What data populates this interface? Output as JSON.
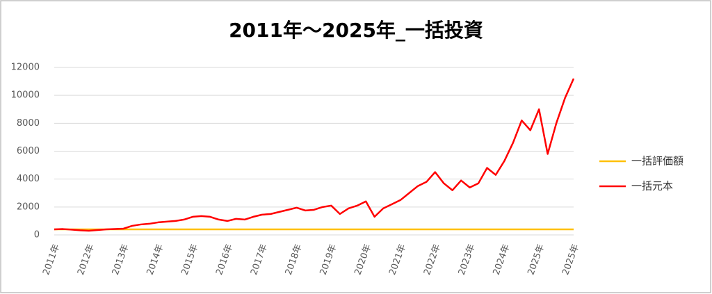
{
  "chart_data": {
    "type": "line",
    "title": "2011年～2025年_一括投資",
    "categories": [
      "2011年",
      null,
      null,
      null,
      "2012年",
      null,
      null,
      null,
      "2013年",
      null,
      null,
      null,
      "2014年",
      null,
      null,
      null,
      "2015年",
      null,
      null,
      null,
      "2016年",
      null,
      null,
      null,
      "2017年",
      null,
      null,
      null,
      "2018年",
      null,
      null,
      null,
      "2019年",
      null,
      null,
      null,
      "2020年",
      null,
      null,
      null,
      "2021年",
      null,
      null,
      null,
      "2022年",
      null,
      null,
      null,
      "2023年",
      null,
      null,
      null,
      "2024年",
      null,
      null,
      null,
      "2025年",
      null,
      null,
      null,
      "2025年"
    ],
    "series": [
      {
        "name": "一括評価額",
        "color": "#ffc000",
        "values": [
          400,
          400,
          400,
          400,
          400,
          400,
          400,
          400,
          400,
          400,
          400,
          400,
          400,
          400,
          400,
          400,
          400,
          400,
          400,
          400,
          400,
          400,
          400,
          400,
          400,
          400,
          400,
          400,
          400,
          400,
          400,
          400,
          400,
          400,
          400,
          400,
          400,
          400,
          400,
          400,
          400,
          400,
          400,
          400,
          400,
          400,
          400,
          400,
          400,
          400,
          400,
          400,
          400,
          400,
          400,
          400,
          400,
          400,
          400,
          400,
          400
        ]
      },
      {
        "name": "一括元本",
        "color": "#ff0000",
        "values": [
          400,
          420,
          380,
          330,
          300,
          350,
          400,
          420,
          450,
          650,
          750,
          800,
          900,
          950,
          1000,
          1100,
          1300,
          1350,
          1300,
          1100,
          1000,
          1150,
          1100,
          1300,
          1450,
          1500,
          1650,
          1800,
          1950,
          1750,
          1800,
          2000,
          2100,
          1500,
          1900,
          2100,
          2400,
          1300,
          1900,
          2200,
          2500,
          3000,
          3500,
          3800,
          4500,
          3700,
          3200,
          3900,
          3400,
          3700,
          4800,
          4300,
          5300,
          6600,
          8200,
          7500,
          9000,
          5800,
          8000,
          9800,
          11200
        ]
      }
    ],
    "ylim": [
      0,
      12000
    ],
    "yticks": [
      0,
      2000,
      4000,
      6000,
      8000,
      10000,
      12000
    ],
    "grid": true,
    "legend": "right"
  }
}
